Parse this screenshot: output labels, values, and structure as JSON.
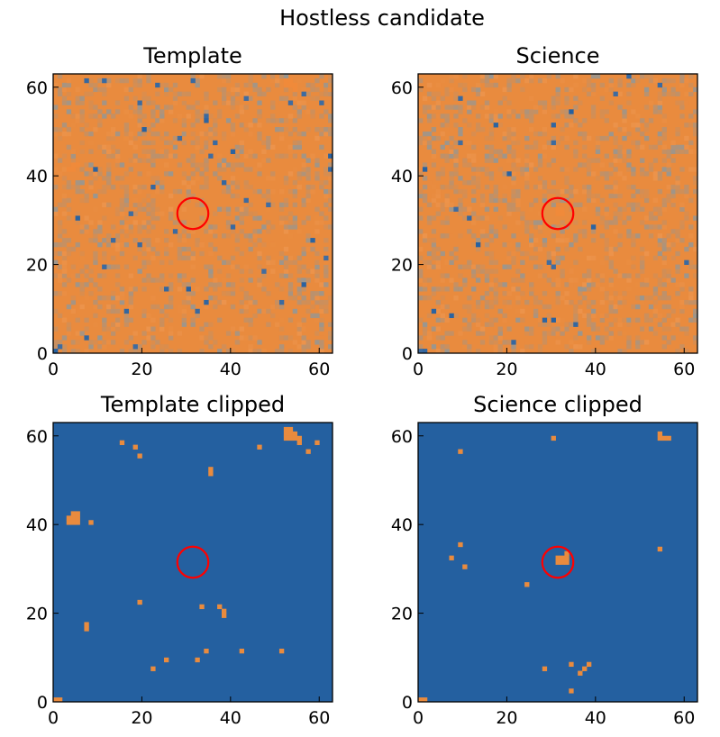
{
  "figure": {
    "suptitle": "Hostless candidate"
  },
  "colors": {
    "background": "#2460a0",
    "orange": "#e98b3e",
    "noise_light": "#9a968f",
    "noise_dark": "#5f7a9f",
    "circle": "#ff0000"
  },
  "chart_data": [
    {
      "type": "heatmap",
      "title": "Template",
      "xlim": [
        0,
        63
      ],
      "ylim": [
        0,
        63
      ],
      "xticks": [
        "0",
        "20",
        "40",
        "60"
      ],
      "yticks": [
        "0",
        "20",
        "40",
        "60"
      ],
      "circle": {
        "x": 31.5,
        "y": 31.5,
        "r": 3.5
      },
      "mode": "noisy",
      "seed": 11,
      "dark_pixels": [
        [
          7,
          61
        ],
        [
          11,
          61
        ],
        [
          19,
          56
        ],
        [
          23,
          60
        ],
        [
          31,
          61
        ],
        [
          43,
          57
        ],
        [
          53,
          56
        ],
        [
          56,
          58
        ],
        [
          60,
          56
        ],
        [
          34,
          53
        ],
        [
          34,
          52
        ],
        [
          20,
          50
        ],
        [
          28,
          48
        ],
        [
          36,
          47
        ],
        [
          40,
          45
        ],
        [
          35,
          44
        ],
        [
          38,
          38
        ],
        [
          22,
          37
        ],
        [
          17,
          31
        ],
        [
          27,
          27
        ],
        [
          43,
          34
        ],
        [
          48,
          33
        ],
        [
          62,
          41
        ],
        [
          19,
          24
        ],
        [
          58,
          25
        ],
        [
          47,
          18
        ],
        [
          61,
          21
        ],
        [
          13,
          25
        ],
        [
          11,
          19
        ],
        [
          25,
          14
        ],
        [
          30,
          14
        ],
        [
          56,
          15
        ],
        [
          51,
          11
        ],
        [
          34,
          11
        ],
        [
          16,
          9
        ],
        [
          32,
          9
        ],
        [
          7,
          3
        ],
        [
          18,
          1
        ],
        [
          1,
          1
        ],
        [
          0,
          0
        ],
        [
          9,
          41
        ],
        [
          5,
          30
        ],
        [
          40,
          28
        ],
        [
          62,
          44
        ]
      ],
      "orange_blobs": [
        [
          3,
          41
        ],
        [
          4,
          41
        ],
        [
          4,
          42
        ],
        [
          5,
          42
        ],
        [
          52,
          61
        ],
        [
          53,
          61
        ],
        [
          52,
          60
        ],
        [
          53,
          60
        ],
        [
          54,
          60
        ],
        [
          54,
          59
        ]
      ]
    },
    {
      "type": "heatmap",
      "title": "Science",
      "xlim": [
        0,
        63
      ],
      "ylim": [
        0,
        63
      ],
      "xticks": [
        "0",
        "20",
        "40",
        "60"
      ],
      "yticks": [
        "0",
        "20",
        "40",
        "60"
      ],
      "circle": {
        "x": 31.5,
        "y": 31.5,
        "r": 3.5
      },
      "mode": "noisy",
      "seed": 29,
      "dark_pixels": [
        [
          47,
          62
        ],
        [
          9,
          57
        ],
        [
          34,
          54
        ],
        [
          17,
          51
        ],
        [
          30,
          51
        ],
        [
          9,
          47
        ],
        [
          30,
          47
        ],
        [
          1,
          41
        ],
        [
          8,
          32
        ],
        [
          11,
          30
        ],
        [
          39,
          28
        ],
        [
          13,
          24
        ],
        [
          29,
          20
        ],
        [
          30,
          19
        ],
        [
          3,
          9
        ],
        [
          7,
          8
        ],
        [
          28,
          7
        ],
        [
          30,
          7
        ],
        [
          35,
          6
        ],
        [
          21,
          2
        ],
        [
          0,
          0
        ],
        [
          1,
          0
        ],
        [
          54,
          60
        ],
        [
          44,
          58
        ],
        [
          20,
          40
        ],
        [
          60,
          20
        ]
      ],
      "orange_blobs": [
        [
          31,
          31
        ],
        [
          32,
          31
        ],
        [
          31,
          32
        ],
        [
          32,
          32
        ]
      ]
    },
    {
      "type": "heatmap",
      "title": "Template clipped",
      "xlim": [
        0,
        63
      ],
      "ylim": [
        0,
        63
      ],
      "xticks": [
        "0",
        "20",
        "40",
        "60"
      ],
      "yticks": [
        "0",
        "20",
        "40",
        "60"
      ],
      "circle": {
        "x": 31.5,
        "y": 31.5,
        "r": 3.5
      },
      "mode": "clipped",
      "orange_pixels": [
        [
          3,
          41
        ],
        [
          4,
          41
        ],
        [
          5,
          41
        ],
        [
          3,
          40
        ],
        [
          4,
          40
        ],
        [
          5,
          40
        ],
        [
          4,
          42
        ],
        [
          5,
          42
        ],
        [
          8,
          40
        ],
        [
          15,
          58
        ],
        [
          18,
          57
        ],
        [
          19,
          55
        ],
        [
          35,
          52
        ],
        [
          35,
          51
        ],
        [
          46,
          57
        ],
        [
          52,
          61
        ],
        [
          53,
          61
        ],
        [
          52,
          60
        ],
        [
          53,
          60
        ],
        [
          54,
          60
        ],
        [
          52,
          59
        ],
        [
          53,
          59
        ],
        [
          54,
          59
        ],
        [
          55,
          59
        ],
        [
          55,
          58
        ],
        [
          57,
          56
        ],
        [
          59,
          58
        ],
        [
          7,
          17
        ],
        [
          7,
          16
        ],
        [
          19,
          22
        ],
        [
          33,
          21
        ],
        [
          37,
          21
        ],
        [
          38,
          20
        ],
        [
          38,
          19
        ],
        [
          22,
          7
        ],
        [
          25,
          9
        ],
        [
          32,
          9
        ],
        [
          34,
          11
        ],
        [
          42,
          11
        ],
        [
          51,
          11
        ],
        [
          63,
          9
        ],
        [
          0,
          0
        ],
        [
          1,
          0
        ]
      ]
    },
    {
      "type": "heatmap",
      "title": "Science clipped",
      "xlim": [
        0,
        63
      ],
      "ylim": [
        0,
        63
      ],
      "xticks": [
        "0",
        "20",
        "40",
        "60"
      ],
      "yticks": [
        "0",
        "20",
        "40",
        "60"
      ],
      "circle": {
        "x": 31.5,
        "y": 31.5,
        "r": 3.5
      },
      "mode": "clipped",
      "orange_pixels": [
        [
          9,
          56
        ],
        [
          30,
          59
        ],
        [
          54,
          60
        ],
        [
          55,
          59
        ],
        [
          54,
          59
        ],
        [
          56,
          59
        ],
        [
          54,
          34
        ],
        [
          9,
          35
        ],
        [
          7,
          32
        ],
        [
          10,
          30
        ],
        [
          31,
          32
        ],
        [
          32,
          32
        ],
        [
          33,
          32
        ],
        [
          31,
          31
        ],
        [
          32,
          31
        ],
        [
          33,
          31
        ],
        [
          33,
          33
        ],
        [
          24,
          26
        ],
        [
          28,
          7
        ],
        [
          34,
          8
        ],
        [
          38,
          8
        ],
        [
          36,
          6
        ],
        [
          37,
          7
        ],
        [
          34,
          2
        ],
        [
          0,
          0
        ],
        [
          1,
          0
        ]
      ]
    }
  ]
}
